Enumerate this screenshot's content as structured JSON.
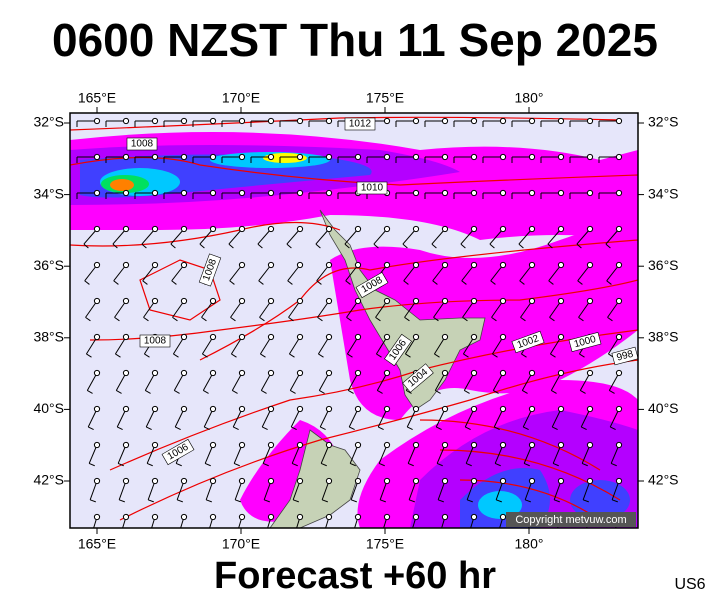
{
  "header": {
    "title": "0600 NZST Thu 11 Sep 2025"
  },
  "footer": {
    "forecast": "Forecast +60 hr",
    "code": "US6"
  },
  "map": {
    "lon_labels": [
      "165°E",
      "170°E",
      "175°E",
      "180°"
    ],
    "lat_labels": [
      "32°S",
      "34°S",
      "36°S",
      "38°S",
      "40°S",
      "42°S"
    ],
    "isobar_labels": [
      "1012",
      "1008",
      "1010",
      "1008",
      "1008",
      "1008",
      "1006",
      "1004",
      "1002",
      "1000",
      "998",
      "1006"
    ],
    "copyright": "Copyright metvuw.com"
  }
}
